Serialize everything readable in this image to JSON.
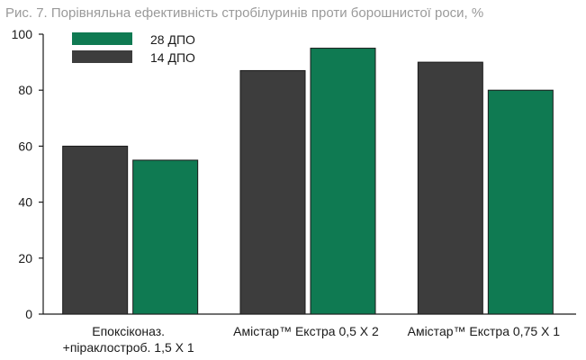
{
  "chart_data": {
    "type": "bar",
    "title": "Рис. 7. Порівняльна ефективність стробілуринів проти борошнистої роси, %",
    "xlabel": "",
    "ylabel": "",
    "ylim": [
      0,
      100
    ],
    "yticks": [
      0,
      20,
      40,
      60,
      80,
      100
    ],
    "grid": false,
    "legend_position": "top-left",
    "categories": [
      [
        "Епоксіконаз.",
        "+піраклостроб. 1,5 X 1"
      ],
      [
        "Амістар™ Екстра 0,5 X 2"
      ],
      [
        "Амістар™ Екстра 0,75 X 1"
      ]
    ],
    "legend_order": [
      1,
      0
    ],
    "series": [
      {
        "name": "14 ДПО",
        "color": "#3d3d3d",
        "values": [
          60,
          87,
          90
        ]
      },
      {
        "name": "28 ДПО",
        "color": "#0f7a52",
        "values": [
          55,
          95,
          80
        ]
      }
    ]
  }
}
